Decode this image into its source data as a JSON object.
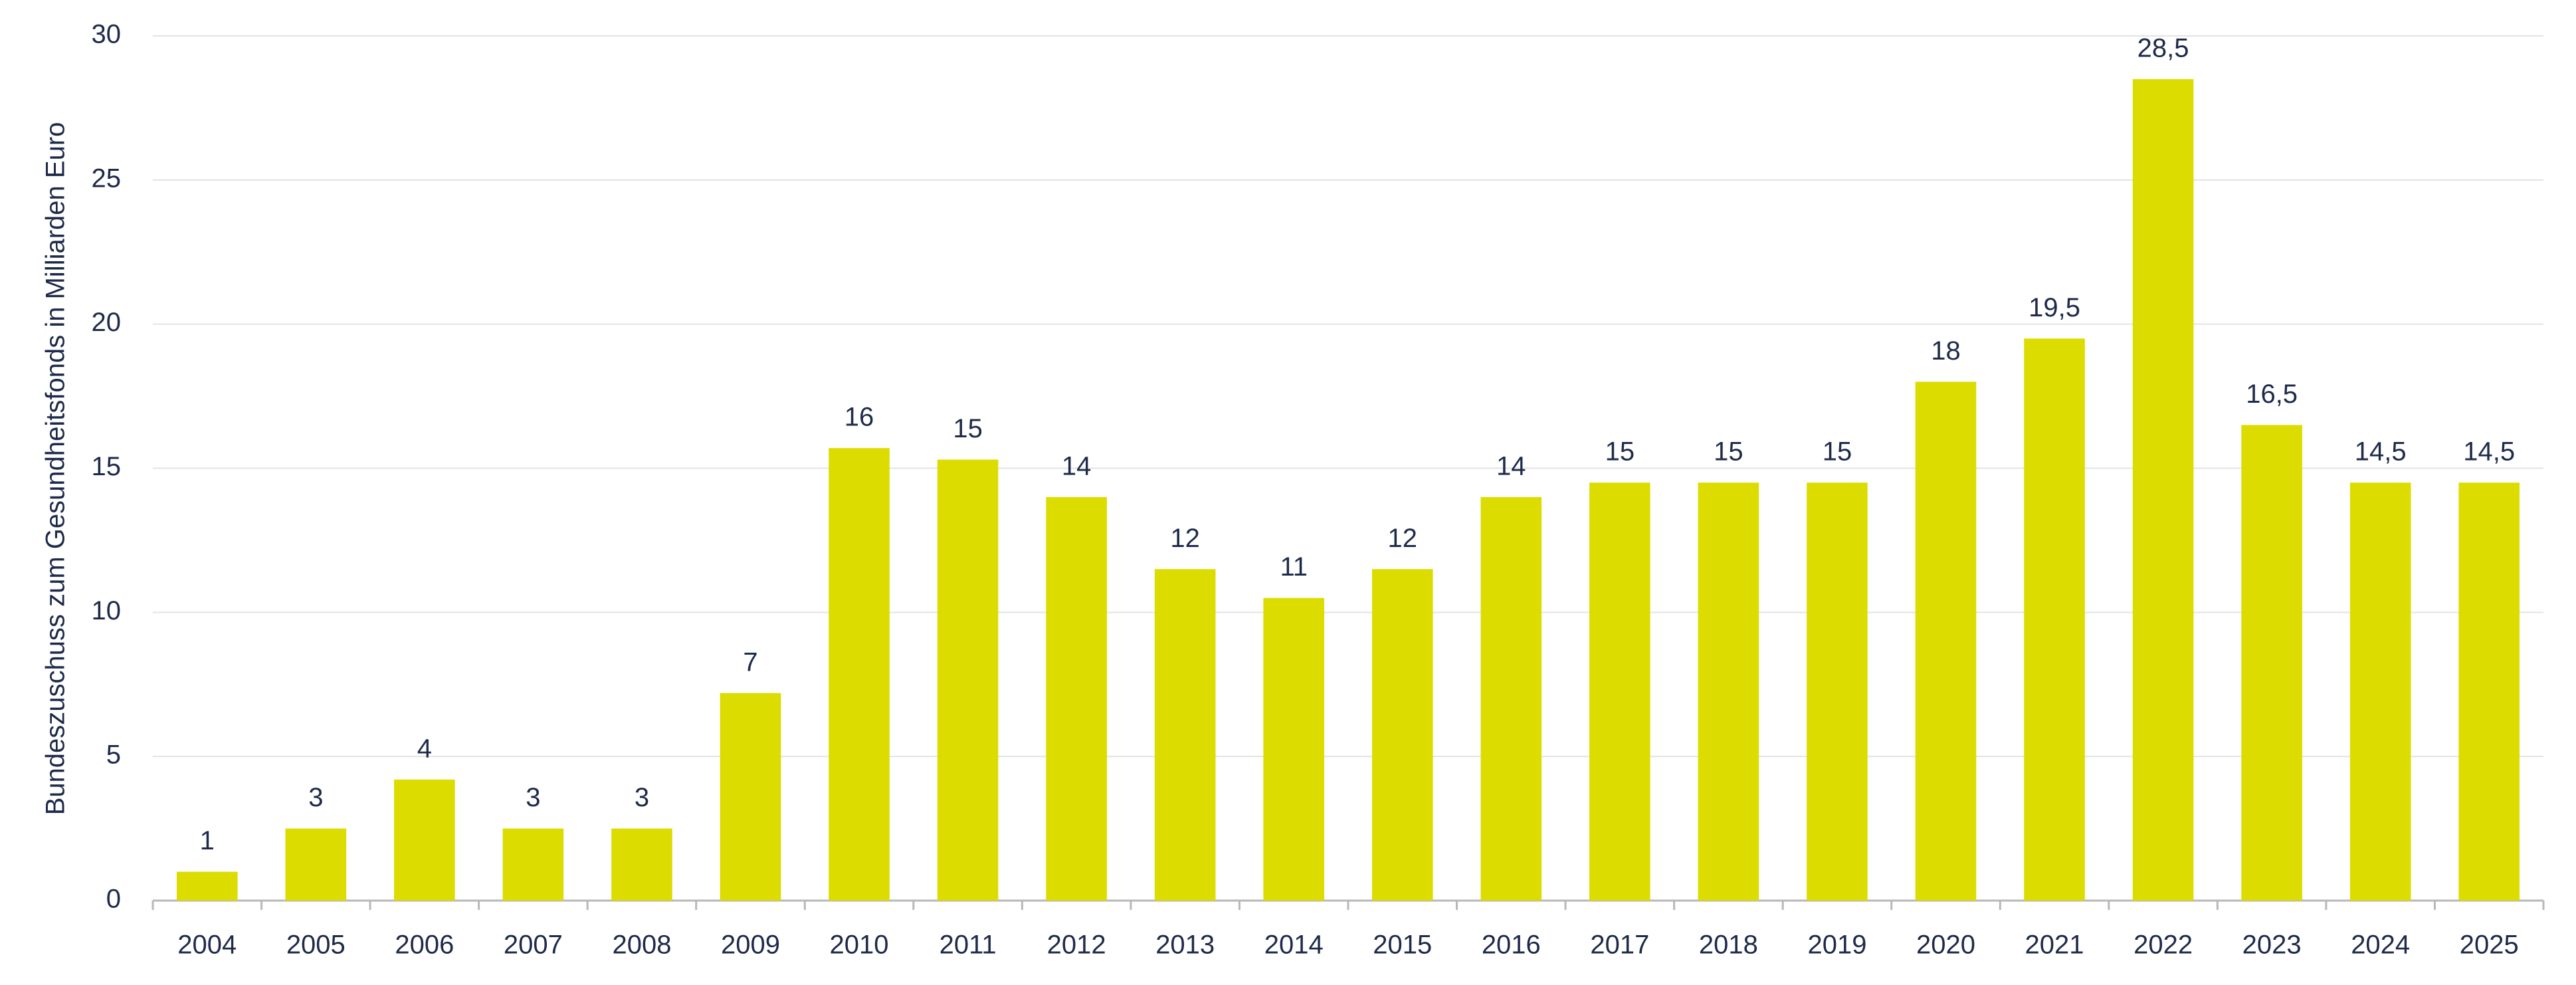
{
  "chart_data": {
    "type": "bar",
    "y_label": "Bundeszuschuss zum Gesundheitsfonds in Milliarden Euro",
    "categories": [
      "2004",
      "2005",
      "2006",
      "2007",
      "2008",
      "2009",
      "2010",
      "2011",
      "2012",
      "2013",
      "2014",
      "2015",
      "2016",
      "2017",
      "2018",
      "2019",
      "2020",
      "2021",
      "2022",
      "2023",
      "2024",
      "2025"
    ],
    "values": [
      1,
      2.5,
      4.2,
      2.5,
      2.5,
      7.2,
      15.7,
      15.3,
      14,
      11.5,
      10.5,
      11.5,
      14,
      14.5,
      14.5,
      14.5,
      18,
      19.5,
      28.5,
      16.5,
      14.5,
      14.5
    ],
    "value_labels": [
      "1",
      "3",
      "4",
      "3",
      "3",
      "7",
      "16",
      "15",
      "14",
      "12",
      "11",
      "12",
      "14",
      "15",
      "15",
      "15",
      "18",
      "19,5",
      "28,5",
      "16,5",
      "14,5",
      "14,5"
    ],
    "color": "#dcdc00",
    "ylim": [
      0,
      30
    ],
    "yticks": [
      0,
      5,
      10,
      15,
      20,
      25,
      30
    ],
    "grid": true
  }
}
